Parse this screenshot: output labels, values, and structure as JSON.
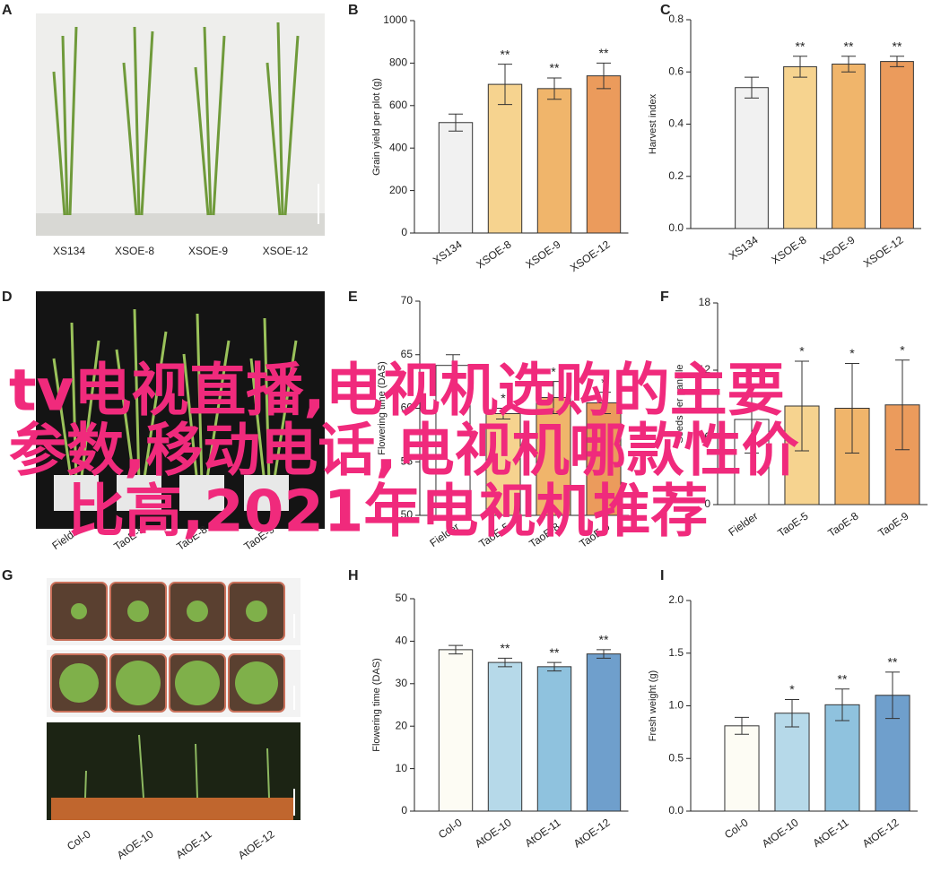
{
  "panels": [
    "A",
    "B",
    "C",
    "D",
    "E",
    "F",
    "G",
    "H",
    "I"
  ],
  "photo_labels": [
    [
      "XS134",
      "XSOE-8",
      "XSOE-9",
      "XSOE-12"
    ],
    [
      "Fielder",
      "TaoE-5",
      "TaoE-8",
      "TaoE-9"
    ],
    [
      "Col-0",
      "AtOE-10",
      "AtOE-11",
      "AtOE-12"
    ]
  ],
  "overlay": [
    "tv电视直播,电视机选购的主要",
    "参数,移动电话,电视机哪款性价",
    "比高,2021年电视机推荐"
  ],
  "chart_data": [
    {
      "type": "bar",
      "ylabel": "Grain yield per plot (g)",
      "categories": [
        "XS134",
        "XSOE-8",
        "XSOE-9",
        "XSOE-12"
      ],
      "values": [
        520,
        700,
        680,
        740
      ],
      "errors": [
        40,
        95,
        50,
        60
      ],
      "significance": [
        null,
        "**",
        "**",
        "**"
      ],
      "colors": [
        "#f1f1f1",
        "#f6d38f",
        "#f0b56b",
        "#eb9b5c"
      ],
      "ylim": [
        0,
        1000
      ],
      "yticks": [
        0,
        200,
        400,
        600,
        800,
        1000
      ]
    },
    {
      "type": "bar",
      "ylabel": "Harvest index",
      "categories": [
        "XS134",
        "XSOE-8",
        "XSOE-9",
        "XSOE-12"
      ],
      "values": [
        0.54,
        0.62,
        0.63,
        0.64
      ],
      "errors": [
        0.04,
        0.04,
        0.03,
        0.02
      ],
      "significance": [
        null,
        "**",
        "**",
        "**"
      ],
      "colors": [
        "#f1f1f1",
        "#f6d38f",
        "#f0b56b",
        "#eb9b5c"
      ],
      "ylim": [
        0,
        0.8
      ],
      "yticks": [
        {
          "value": 0,
          "label": "0.0"
        },
        {
          "value": 0.2,
          "label": "0.2"
        },
        {
          "value": 0.4,
          "label": "0.4"
        },
        {
          "value": 0.6,
          "label": "0.6"
        },
        {
          "value": 0.8,
          "label": "0.8"
        }
      ]
    },
    {
      "type": "bar",
      "ylabel": "Flowering time (DAS)",
      "categories": [
        "Fielder",
        "TaoE-5",
        "TaoE-8",
        "TaoE-9"
      ],
      "values": [
        64,
        59.5,
        61,
        60.5
      ],
      "errors": [
        1,
        0.5,
        1.5,
        1
      ],
      "significance": [
        null,
        "*",
        "*",
        "*"
      ],
      "colors": [
        "#ffffff",
        "#f6d38f",
        "#f0b56b",
        "#eb9b5c"
      ],
      "ylim": [
        50,
        70
      ],
      "yticks": [
        50,
        55,
        60,
        65,
        70
      ]
    },
    {
      "type": "bar",
      "ylabel": "Seeds per panicle",
      "categories": [
        "Fielder",
        "TaoE-5",
        "TaoE-8",
        "TaoE-9"
      ],
      "values": [
        7.6,
        8.8,
        8.6,
        8.9
      ],
      "errors": [
        3,
        4,
        4,
        4
      ],
      "significance": [
        null,
        "*",
        "*",
        "*"
      ],
      "colors": [
        "#ffffff",
        "#f6d38f",
        "#f0b56b",
        "#eb9b5c"
      ],
      "ylim": [
        0,
        18
      ],
      "yticks": [
        0,
        6,
        12,
        18
      ]
    },
    {
      "type": "bar",
      "ylabel": "Flowering time (DAS)",
      "categories": [
        "Col-0",
        "AtOE-10",
        "AtOE-11",
        "AtOE-12"
      ],
      "values": [
        38,
        35,
        34,
        37
      ],
      "errors": [
        1,
        1,
        1,
        1
      ],
      "significance": [
        null,
        "**",
        "**",
        "**"
      ],
      "colors": [
        "#fdfcf4",
        "#b6d9e9",
        "#8fc2de",
        "#6f9fcc"
      ],
      "ylim": [
        0,
        50
      ],
      "yticks": [
        0,
        10,
        20,
        30,
        40,
        50
      ]
    },
    {
      "type": "bar",
      "ylabel": "Fresh weight (g)",
      "categories": [
        "Col-0",
        "AtOE-10",
        "AtOE-11",
        "AtOE-12"
      ],
      "values": [
        0.81,
        0.93,
        1.01,
        1.1
      ],
      "errors": [
        0.08,
        0.13,
        0.15,
        0.22
      ],
      "significance": [
        null,
        "*",
        "**",
        "**"
      ],
      "colors": [
        "#fdfcf4",
        "#b6d9e9",
        "#8fc2de",
        "#6f9fcc"
      ],
      "ylim": [
        0,
        2
      ],
      "yticks": [
        {
          "value": 0,
          "label": "0.0"
        },
        {
          "value": 0.5,
          "label": "0.5"
        },
        {
          "value": 1,
          "label": "1.0"
        },
        {
          "value": 1.5,
          "label": "1.5"
        },
        {
          "value": 2,
          "label": "2.0"
        }
      ]
    }
  ]
}
